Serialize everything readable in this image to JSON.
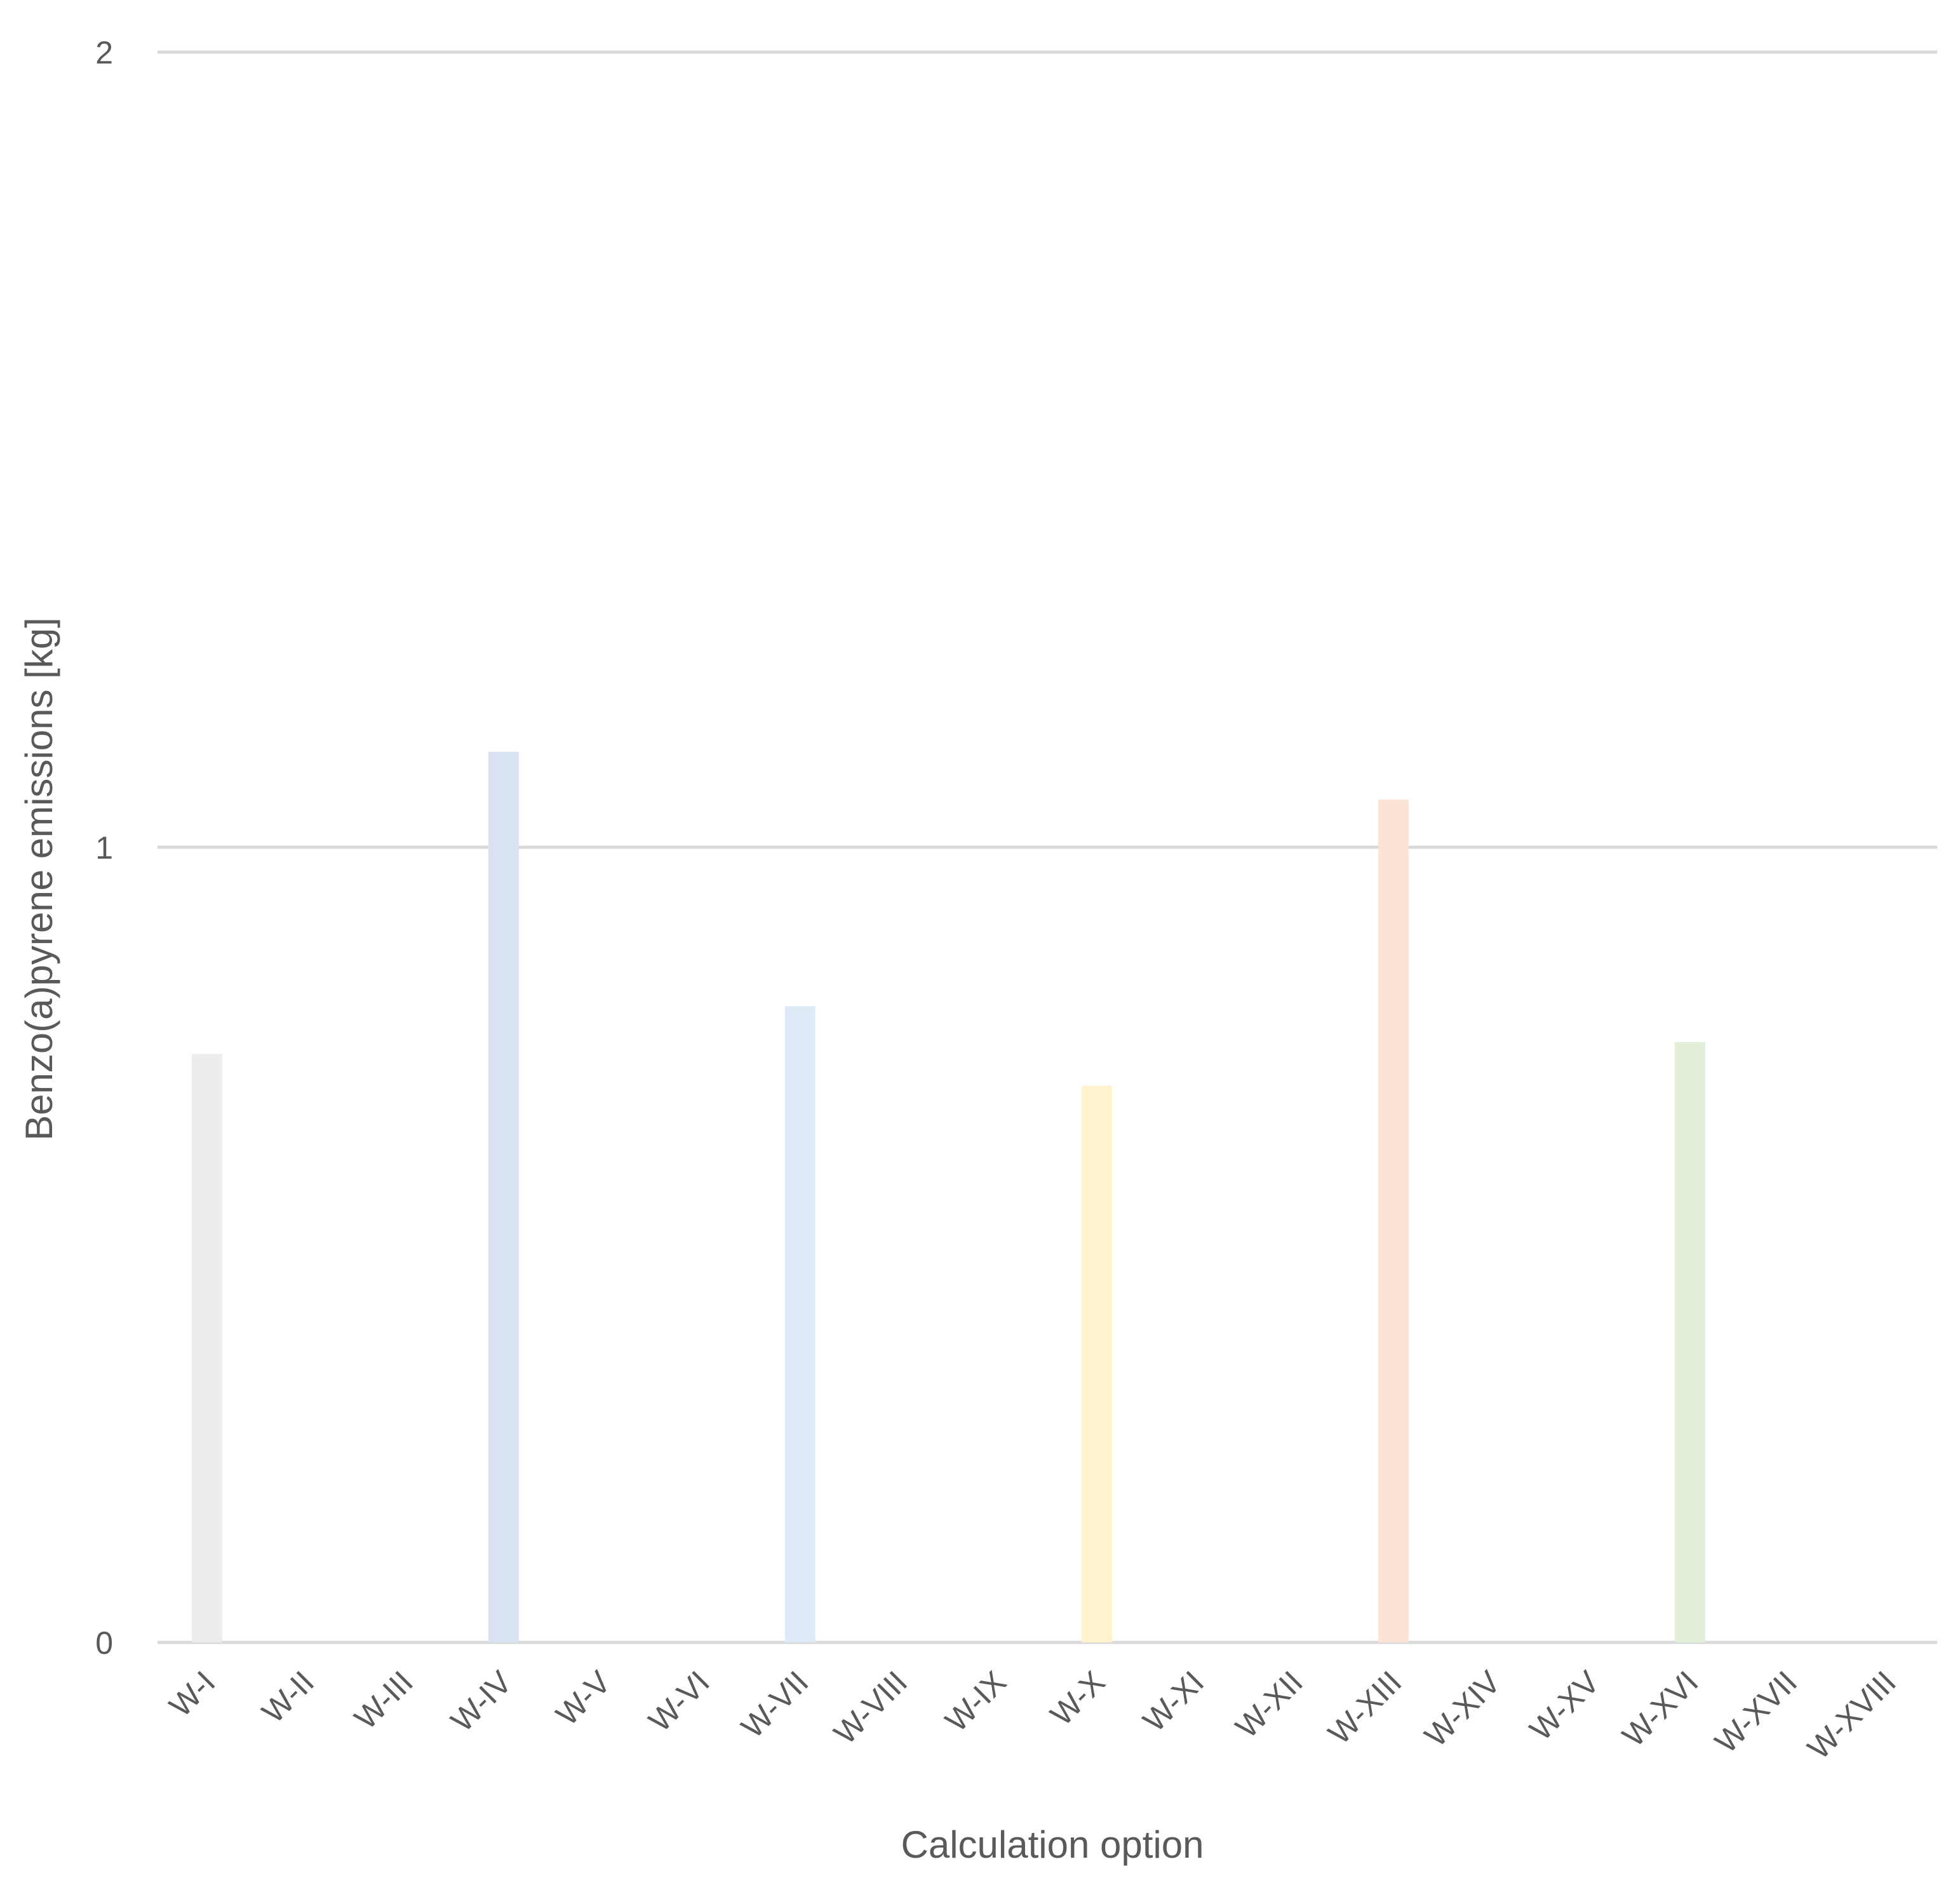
{
  "chart_data": {
    "type": "bar",
    "xlabel": "Calculation option",
    "ylabel": "Benzo(a)pyrene emissions [kg]",
    "ylim": [
      0,
      2
    ],
    "yticks": [
      "0",
      "1",
      "2"
    ],
    "grid": true,
    "categories": [
      "W-I",
      "W-II",
      "W-III",
      "W-IV",
      "W-V",
      "W-VI",
      "W-VII",
      "W-VIII",
      "W-IX",
      "W-X",
      "W-XI",
      "W-XII",
      "W-XIII",
      "W-XIV",
      "W-XV",
      "W-XVI",
      "W-XVII",
      "W-XVIII"
    ],
    "values": [
      0.74,
      0,
      0,
      1.12,
      0,
      0,
      0.8,
      0,
      0,
      0.7,
      0,
      0,
      1.06,
      0,
      0,
      0.755,
      0,
      0
    ],
    "colors": [
      "#ededed",
      "#ffffff",
      "#ffffff",
      "#d9e2f3",
      "#ffffff",
      "#ffffff",
      "#deeaf6",
      "#ffffff",
      "#ffffff",
      "#fff2cc",
      "#ffffff",
      "#ffffff",
      "#fbe4d5",
      "#ffffff",
      "#ffffff",
      "#e2efd9",
      "#ffffff",
      "#ffffff"
    ]
  }
}
